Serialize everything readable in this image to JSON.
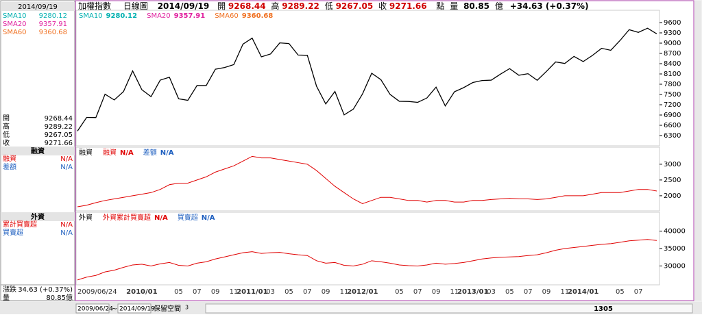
{
  "header": {
    "name": "加權指數",
    "period": "日線圖",
    "date": "2014/09/19",
    "quote": [
      {
        "label": "開",
        "value": "9268.44"
      },
      {
        "label": "高",
        "value": "9289.22"
      },
      {
        "label": "低",
        "value": "9267.05"
      },
      {
        "label": "收",
        "value": "9271.66"
      }
    ],
    "unit": "點",
    "volume_label": "量",
    "volume": "80.85",
    "volume_unit": "億",
    "change": "+34.63 (+0.37%)"
  },
  "sidebar": {
    "date": "2014/09/19",
    "sma": [
      {
        "name": "SMA10",
        "value": "9280.12"
      },
      {
        "name": "SMA20",
        "value": "9357.91"
      },
      {
        "name": "SMA60",
        "value": "9360.68"
      }
    ],
    "ohlc": [
      {
        "label": "開",
        "value": "9268.44"
      },
      {
        "label": "高",
        "value": "9289.22"
      },
      {
        "label": "低",
        "value": "9267.05"
      },
      {
        "label": "收",
        "value": "9271.66"
      }
    ],
    "margin": {
      "title": "融資",
      "rows": [
        {
          "label": "融資",
          "value": "N/A"
        },
        {
          "label": "差額",
          "value": "N/A"
        }
      ]
    },
    "foreign": {
      "title": "外資",
      "rows": [
        {
          "label": "累計買賣超",
          "value": "N/A"
        },
        {
          "label": "買賣超",
          "value": "N/A"
        }
      ]
    },
    "change": {
      "label": "漲跌",
      "value": "34.63 (+0.37%)"
    },
    "volume": {
      "label": "量",
      "value": "80.85億"
    }
  },
  "charts": {
    "categories": [
      "2009/06/24",
      null,
      null,
      null,
      null,
      null,
      null,
      "2010/01",
      null,
      null,
      null,
      "05",
      null,
      "07",
      null,
      "09",
      null,
      "11",
      null,
      "2011/01",
      null,
      "03",
      null,
      "05",
      null,
      "07",
      null,
      "09",
      null,
      "11",
      null,
      "2012/01",
      null,
      null,
      null,
      "05",
      null,
      "07",
      null,
      "09",
      null,
      "11",
      null,
      "2013/01",
      null,
      "03",
      null,
      "05",
      null,
      "07",
      null,
      "09",
      null,
      "11",
      null,
      "2014/01",
      null,
      null,
      null,
      "05",
      null,
      "07",
      null,
      null
    ],
    "price": {
      "type": "line",
      "legend": [
        {
          "name": "SMA10",
          "value": "9280.12",
          "color": "#00b0b0"
        },
        {
          "name": "SMA20",
          "value": "9357.91",
          "color": "#e0209e"
        },
        {
          "name": "SMA60",
          "value": "9360.68",
          "color": "#f07020"
        }
      ],
      "color": "#000000",
      "values": [
        6432,
        6830,
        6826,
        7509,
        7340,
        7582,
        8188,
        7640,
        7436,
        7920,
        8004,
        7374,
        7329,
        7761,
        7761,
        8238,
        8287,
        8372,
        8972,
        9146,
        8600,
        8683,
        9007,
        8988,
        8652,
        8644,
        7741,
        7225,
        7588,
        6904,
        7072,
        7517,
        8121,
        7933,
        7501,
        7301,
        7296,
        7270,
        7397,
        7715,
        7166,
        7580,
        7700,
        7850,
        7908,
        7919,
        8093,
        8255,
        8062,
        8107,
        7915,
        8173,
        8450,
        8406,
        8612,
        8462,
        8640,
        8849,
        8791,
        9075,
        9393,
        9315,
        9436,
        9271
      ],
      "ylim": [
        6000,
        9960
      ],
      "yticks": [
        6300,
        6600,
        6900,
        7200,
        7500,
        7800,
        8100,
        8400,
        8700,
        9000,
        9300,
        9600
      ]
    },
    "margin": {
      "type": "line",
      "legend": [
        {
          "name": "融資",
          "color": "#000000"
        },
        {
          "name": "融資",
          "value": "N/A",
          "color": "#e00000"
        },
        {
          "name": "差額",
          "value": "N/A",
          "color": "#2060c0"
        }
      ],
      "color": "#e00000",
      "values": [
        1650,
        1700,
        1780,
        1850,
        1900,
        1950,
        2000,
        2050,
        2100,
        2200,
        2350,
        2400,
        2400,
        2500,
        2600,
        2750,
        2850,
        2950,
        3100,
        3250,
        3200,
        3200,
        3150,
        3100,
        3050,
        3000,
        2800,
        2550,
        2300,
        2100,
        1900,
        1750,
        1850,
        1950,
        1950,
        1900,
        1850,
        1850,
        1800,
        1850,
        1850,
        1800,
        1800,
        1850,
        1850,
        1880,
        1900,
        1920,
        1900,
        1900,
        1880,
        1900,
        1950,
        2000,
        2000,
        2000,
        2050,
        2100,
        2100,
        2100,
        2150,
        2200,
        2200,
        2150
      ],
      "ylim": [
        1520,
        3540
      ],
      "yticks": [
        2000,
        2500,
        3000
      ]
    },
    "foreign": {
      "type": "line",
      "legend": [
        {
          "name": "外資",
          "color": "#000000"
        },
        {
          "name": "外資累計買賣超",
          "value": "N/A",
          "color": "#e00000"
        },
        {
          "name": "買賣超",
          "value": "N/A",
          "color": "#2060c0"
        }
      ],
      "color": "#e00000",
      "values": [
        26000,
        26800,
        27300,
        28300,
        28800,
        29600,
        30300,
        30500,
        30000,
        30600,
        31000,
        30200,
        30000,
        30800,
        31200,
        32000,
        32600,
        33200,
        33800,
        34100,
        33600,
        33800,
        33900,
        33500,
        33200,
        33000,
        31500,
        30800,
        31000,
        30200,
        30000,
        30500,
        31500,
        31200,
        30800,
        30300,
        30100,
        30000,
        30300,
        30800,
        30500,
        30700,
        31000,
        31500,
        32000,
        32300,
        32500,
        32600,
        32700,
        33000,
        33200,
        33800,
        34500,
        35000,
        35300,
        35600,
        35900,
        36200,
        36400,
        36800,
        37200,
        37400,
        37600,
        37300
      ],
      "ylim": [
        24600,
        45400
      ],
      "yticks": [
        30000,
        35000,
        40000
      ]
    }
  },
  "footer": {
    "start": "2009/06/24",
    "tilde": "~",
    "end": "2014/09/19",
    "reserve": "保留空間",
    "reserve_num": "3",
    "count": "1305"
  }
}
